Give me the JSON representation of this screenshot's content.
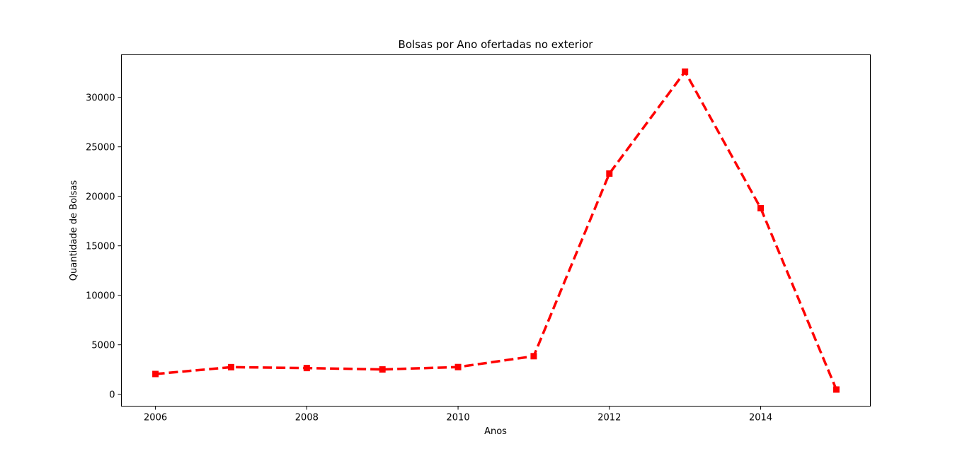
{
  "chart_data": {
    "type": "line",
    "title": "Bolsas por Ano ofertadas no exterior",
    "xlabel": "Anos",
    "ylabel": "Quantidade de Bolsas",
    "x": [
      2006,
      2007,
      2008,
      2009,
      2010,
      2011,
      2012,
      2013,
      2014,
      2015
    ],
    "series": [
      {
        "name": "Bolsas",
        "values": [
          2050,
          2740,
          2650,
          2510,
          2750,
          3850,
          22300,
          32600,
          18800,
          480
        ],
        "color": "#ff0000",
        "line_style": "dashed",
        "marker": "square"
      }
    ],
    "xlim": [
      2005.55,
      2015.45
    ],
    "ylim": [
      -1200,
      34300
    ],
    "xticks": [
      2006,
      2008,
      2010,
      2012,
      2014
    ],
    "xtick_labels": [
      "2006",
      "2008",
      "2010",
      "2012",
      "2014"
    ],
    "yticks": [
      0,
      5000,
      10000,
      15000,
      20000,
      25000,
      30000
    ],
    "ytick_labels": [
      "0",
      "5000",
      "10000",
      "15000",
      "20000",
      "25000",
      "30000"
    ],
    "grid": false,
    "legend": false
  }
}
